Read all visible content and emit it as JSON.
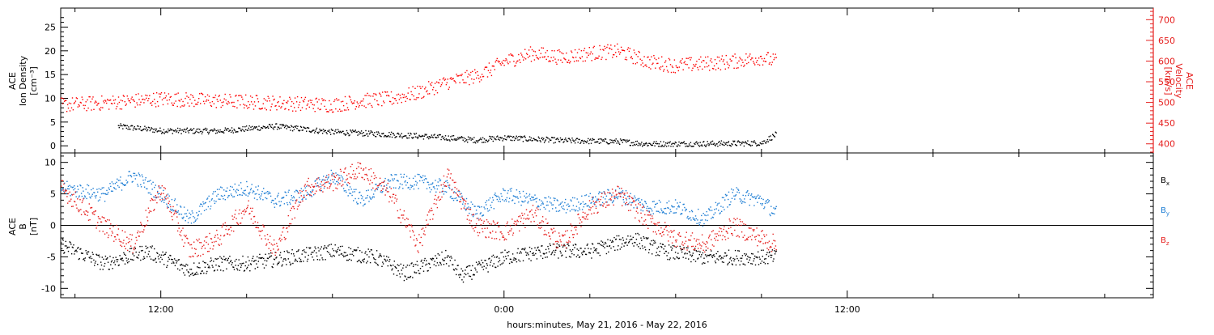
{
  "chart_data": [
    {
      "type": "scatter",
      "title": "",
      "xlabel": "hours:minutes, May 21, 2016 - May 22, 2016",
      "x_tick_labels": [
        "12:00",
        "0:00",
        "12:00"
      ],
      "ylabel_left": [
        "ACE",
        "Ion Density",
        "[cm⁻³]"
      ],
      "ylabel_right": [
        "ACE",
        "Velocity",
        "[km/s]"
      ],
      "ylim_left": [
        -1.5,
        29
      ],
      "ylim_right": [
        378,
        728
      ],
      "y_ticks_left": [
        "0",
        "5",
        "10",
        "15",
        "20",
        "25"
      ],
      "y_ticks_right": [
        "400",
        "450",
        "500",
        "550",
        "600",
        "650",
        "700"
      ],
      "x_range_hours": [
        -15.5,
        22.7
      ],
      "data_end_hours": 9.5,
      "series": [
        {
          "name": "",
          "axis": "left",
          "color": "#000000",
          "x": [
            -13.5,
            -12.0,
            -10.0,
            -8.0,
            -6.0,
            -4.0,
            -2.0,
            -1.0,
            0.0,
            2.0,
            4.0,
            5.0,
            6.0,
            8.0,
            9.0,
            9.5
          ],
          "y": [
            4.2,
            3.3,
            3.2,
            4.2,
            3.0,
            2.5,
            1.8,
            1.3,
            1.8,
            1.2,
            1.0,
            0.5,
            0.5,
            0.6,
            0.7,
            2.5
          ]
        },
        {
          "name": "",
          "axis": "right",
          "color": "#ff0000",
          "x": [
            -15.5,
            -14.0,
            -12.0,
            -10.0,
            -8.0,
            -6.0,
            -5.0,
            -4.0,
            -3.0,
            -2.0,
            -1.0,
            -0.5,
            0.0,
            1.0,
            2.0,
            3.0,
            4.0,
            5.0,
            6.0,
            7.0,
            8.0,
            9.0,
            9.5
          ],
          "y": [
            495,
            500,
            510,
            505,
            500,
            495,
            505,
            510,
            525,
            550,
            565,
            580,
            600,
            620,
            610,
            620,
            625,
            600,
            590,
            595,
            600,
            610,
            600
          ]
        }
      ]
    },
    {
      "type": "scatter",
      "title": "",
      "xlabel": "hours:minutes, May 21, 2016 - May 22, 2016",
      "ylabel": [
        "ACE",
        "B",
        "[nT]"
      ],
      "ylim": [
        -11.5,
        11.5
      ],
      "y_ticks": [
        "-10",
        "-5",
        "0",
        "5",
        "10"
      ],
      "zero_line": true,
      "legend_position": "right",
      "legend": [
        {
          "label": "B",
          "sub": "x",
          "color": "#000000"
        },
        {
          "label": "B",
          "sub": "y",
          "color": "#1e7ed4"
        },
        {
          "label": "B",
          "sub": "z",
          "color": "#e6201f"
        }
      ],
      "series": [
        {
          "name": "Bx",
          "color": "#000000",
          "x": [
            -15.5,
            -14.0,
            -12.5,
            -11.0,
            -10.0,
            -9.0,
            -7.5,
            -6.0,
            -4.5,
            -3.5,
            -2.0,
            -1.5,
            0.0,
            1.5,
            3.0,
            4.5,
            5.5,
            7.0,
            8.5,
            9.5
          ],
          "y": [
            -3,
            -6,
            -4,
            -7,
            -6,
            -6,
            -5,
            -4,
            -5,
            -7.5,
            -5,
            -8,
            -5,
            -4,
            -4,
            -2,
            -4,
            -5,
            -5,
            -5
          ]
        },
        {
          "name": "By",
          "color": "#1e7ed4",
          "x": [
            -15.5,
            -14.0,
            -13.0,
            -12.0,
            -11.0,
            -10.0,
            -9.0,
            -8.0,
            -7.0,
            -6.0,
            -5.0,
            -4.0,
            -3.0,
            -2.0,
            -1.0,
            0.0,
            1.0,
            2.0,
            3.0,
            4.0,
            5.0,
            6.0,
            7.0,
            8.0,
            9.0,
            9.5
          ],
          "y": [
            6,
            5,
            8,
            5,
            1,
            5,
            6,
            4,
            5,
            8,
            4,
            7,
            7,
            6,
            2,
            5,
            4,
            3,
            4,
            5,
            3,
            3,
            1,
            5,
            4,
            2
          ]
        },
        {
          "name": "Bz",
          "color": "#e6201f",
          "x": [
            -15.5,
            -14.0,
            -13.0,
            -12.0,
            -11.0,
            -10.0,
            -9.0,
            -8.0,
            -7.0,
            -6.0,
            -5.0,
            -4.0,
            -3.0,
            -2.0,
            -1.0,
            0.0,
            1.0,
            2.0,
            3.0,
            4.0,
            5.0,
            6.0,
            7.0,
            8.0,
            9.0,
            9.5
          ],
          "y": [
            6,
            0,
            -3,
            6,
            -4,
            -2,
            3,
            -4,
            6,
            7,
            9,
            5,
            -3,
            8,
            0,
            -1,
            2,
            -3,
            3,
            5,
            1,
            -2,
            -3,
            0,
            -2,
            -3
          ]
        }
      ]
    }
  ]
}
